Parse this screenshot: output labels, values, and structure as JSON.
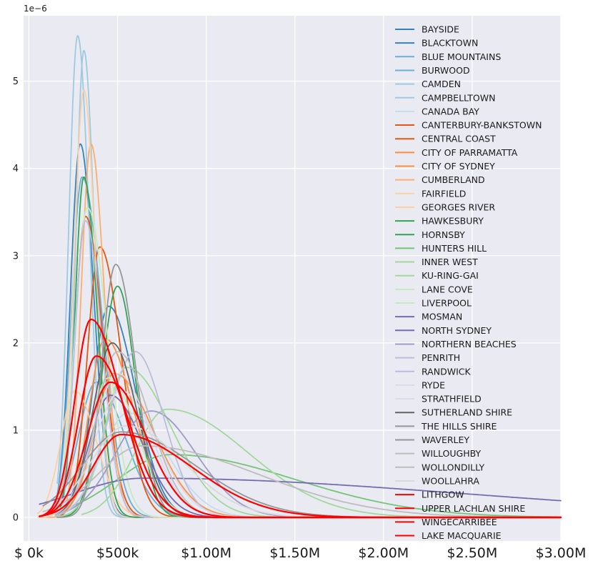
{
  "chart_data": {
    "type": "line",
    "title": "",
    "xlabel": "",
    "ylabel": "",
    "y_multiplier_label": "1e−6",
    "xlim": [
      -30000,
      3000000
    ],
    "ylim": [
      -0.27,
      5.75
    ],
    "x_ticks": [
      {
        "value": 0,
        "label": "$  0k"
      },
      {
        "value": 500000,
        "label": "$500k"
      },
      {
        "value": 1000000,
        "label": "$1.00M"
      },
      {
        "value": 1500000,
        "label": "$1.50M"
      },
      {
        "value": 2000000,
        "label": "$2.00M"
      },
      {
        "value": 2500000,
        "label": "$2.50M"
      },
      {
        "value": 3000000,
        "label": "$3.00M"
      }
    ],
    "y_ticks": [
      {
        "value": 0,
        "label": "0"
      },
      {
        "value": 1,
        "label": "1"
      },
      {
        "value": 2,
        "label": "2"
      },
      {
        "value": 3,
        "label": "3"
      },
      {
        "value": 4,
        "label": "4"
      },
      {
        "value": 5,
        "label": "5"
      }
    ],
    "grid": true,
    "legend_position": "top-right",
    "series": [
      {
        "name": "BAYSIDE",
        "color": "#3182bd",
        "mode": 450000,
        "peak": 2.42,
        "sl": 90000,
        "sr": 150000,
        "xmin": 150000,
        "xmax": 950000
      },
      {
        "name": "BLACKTOWN",
        "color": "#3182bd",
        "mode": 290000,
        "peak": 4.28,
        "sl": 55000,
        "sr": 75000,
        "xmin": 150000,
        "xmax": 620000
      },
      {
        "name": "BLUE MOUNTAINS",
        "color": "#6baed6",
        "mode": 300000,
        "peak": 3.9,
        "sl": 60000,
        "sr": 110000,
        "xmin": 160000,
        "xmax": 800000
      },
      {
        "name": "BURWOOD",
        "color": "#6baed6",
        "mode": 380000,
        "peak": 1.55,
        "sl": 100000,
        "sr": 160000,
        "xmin": 150000,
        "xmax": 1000000
      },
      {
        "name": "CAMDEN",
        "color": "#9ecae1",
        "mode": 275000,
        "peak": 5.52,
        "sl": 50000,
        "sr": 65000,
        "xmin": 160000,
        "xmax": 580000
      },
      {
        "name": "CAMPBELLTOWN",
        "color": "#9ecae1",
        "mode": 310000,
        "peak": 5.35,
        "sl": 45000,
        "sr": 60000,
        "xmin": 180000,
        "xmax": 600000
      },
      {
        "name": "CANADA BAY",
        "color": "#c6dbef",
        "mode": 560000,
        "peak": 1.2,
        "sl": 150000,
        "sr": 220000,
        "xmin": 150000,
        "xmax": 1400000
      },
      {
        "name": "CANTERBURY-BANKSTOWN",
        "color": "#e6550d",
        "mode": 320000,
        "peak": 3.45,
        "sl": 60000,
        "sr": 95000,
        "xmin": 150000,
        "xmax": 800000
      },
      {
        "name": "CENTRAL COAST",
        "color": "#e6550d",
        "mode": 400000,
        "peak": 3.1,
        "sl": 70000,
        "sr": 120000,
        "xmin": 150000,
        "xmax": 1000000
      },
      {
        "name": "CITY OF PARRAMATTA",
        "color": "#fd8d3c",
        "mode": 430000,
        "peak": 2.05,
        "sl": 90000,
        "sr": 160000,
        "xmin": 150000,
        "xmax": 1100000
      },
      {
        "name": "CITY OF SYDNEY",
        "color": "#fd8d3c",
        "mode": 480000,
        "peak": 1.65,
        "sl": 110000,
        "sr": 220000,
        "xmin": 150000,
        "xmax": 1600000
      },
      {
        "name": "CUMBERLAND",
        "color": "#fdae6b",
        "mode": 350000,
        "peak": 4.28,
        "sl": 55000,
        "sr": 75000,
        "xmin": 100000,
        "xmax": 700000
      },
      {
        "name": "FAIRFIELD",
        "color": "#fdd0a2",
        "mode": 310000,
        "peak": 4.9,
        "sl": 55000,
        "sr": 65000,
        "xmin": 50000,
        "xmax": 620000
      },
      {
        "name": "GEORGES RIVER",
        "color": "#fdd0a2",
        "mode": 260000,
        "peak": 1.45,
        "sl": 80000,
        "sr": 120000,
        "xmin": 50000,
        "xmax": 900000
      },
      {
        "name": "HAWKESBURY",
        "color": "#31a354",
        "mode": 310000,
        "peak": 3.9,
        "sl": 50000,
        "sr": 75000,
        "xmin": 160000,
        "xmax": 650000
      },
      {
        "name": "HORNSBY",
        "color": "#31a354",
        "mode": 500000,
        "peak": 2.65,
        "sl": 90000,
        "sr": 100000,
        "xmin": 180000,
        "xmax": 1200000
      },
      {
        "name": "HUNTERS HILL",
        "color": "#74c476",
        "mode": 800000,
        "peak": 0.72,
        "sl": 300000,
        "sr": 700000,
        "xmin": 250000,
        "xmax": 3000000
      },
      {
        "name": "INNER WEST",
        "color": "#a1d99b",
        "mode": 780000,
        "peak": 1.24,
        "sl": 180000,
        "sr": 450000,
        "xmin": 300000,
        "xmax": 3000000
      },
      {
        "name": "KU-RING-GAI",
        "color": "#a1d99b",
        "mode": 550000,
        "peak": 1.72,
        "sl": 120000,
        "sr": 250000,
        "xmin": 150000,
        "xmax": 2000000
      },
      {
        "name": "LANE COVE",
        "color": "#c7e9c0",
        "mode": 330000,
        "peak": 3.55,
        "sl": 70000,
        "sr": 110000,
        "xmin": 130000,
        "xmax": 900000
      },
      {
        "name": "LIVERPOOL",
        "color": "#c7e9c0",
        "mode": 450000,
        "peak": 1.6,
        "sl": 110000,
        "sr": 160000,
        "xmin": 150000,
        "xmax": 1200000
      },
      {
        "name": "MOSMAN",
        "color": "#756bb1",
        "mode": 650000,
        "peak": 0.45,
        "sl": 400000,
        "sr": 1800000,
        "xmin": 60000,
        "xmax": 3000000
      },
      {
        "name": "NORTH SYDNEY",
        "color": "#756bb1",
        "mode": 460000,
        "peak": 1.4,
        "sl": 120000,
        "sr": 180000,
        "xmin": 150000,
        "xmax": 1600000
      },
      {
        "name": "NORTHERN BEACHES",
        "color": "#9e9ac8",
        "mode": 690000,
        "peak": 1.22,
        "sl": 200000,
        "sr": 250000,
        "xmin": 150000,
        "xmax": 2500000
      },
      {
        "name": "PENRITH",
        "color": "#bcbddc",
        "mode": 320000,
        "peak": 3.4,
        "sl": 60000,
        "sr": 90000,
        "xmin": 160000,
        "xmax": 700000
      },
      {
        "name": "RANDWICK",
        "color": "#bcbddc",
        "mode": 600000,
        "peak": 1.9,
        "sl": 150000,
        "sr": 160000,
        "xmin": 150000,
        "xmax": 1600000
      },
      {
        "name": "RYDE",
        "color": "#dadaeb",
        "mode": 500000,
        "peak": 1.65,
        "sl": 130000,
        "sr": 180000,
        "xmin": 150000,
        "xmax": 1500000
      },
      {
        "name": "STRATHFIELD",
        "color": "#dadaeb",
        "mode": 520000,
        "peak": 1.45,
        "sl": 150000,
        "sr": 200000,
        "xmin": 150000,
        "xmax": 1500000
      },
      {
        "name": "SUTHERLAND SHIRE",
        "color": "#636363",
        "mode": 470000,
        "peak": 2.0,
        "sl": 110000,
        "sr": 140000,
        "xmin": 150000,
        "xmax": 1300000
      },
      {
        "name": "THE HILLS SHIRE",
        "color": "#969696",
        "mode": 490000,
        "peak": 2.9,
        "sl": 80000,
        "sr": 110000,
        "xmin": 160000,
        "xmax": 1300000
      },
      {
        "name": "WAVERLEY",
        "color": "#969696",
        "mode": 520000,
        "peak": 0.98,
        "sl": 220000,
        "sr": 420000,
        "xmin": 80000,
        "xmax": 2500000
      },
      {
        "name": "WILLOUGHBY",
        "color": "#bdbdbd",
        "mode": 640000,
        "peak": 0.82,
        "sl": 250000,
        "sr": 650000,
        "xmin": 80000,
        "xmax": 3000000
      },
      {
        "name": "WOLLONDILLY",
        "color": "#bdbdbd",
        "mode": 500000,
        "peak": 1.9,
        "sl": 120000,
        "sr": 180000,
        "xmin": 150000,
        "xmax": 1200000
      },
      {
        "name": "WOOLLAHRA",
        "color": "#d9d9d9",
        "mode": 550000,
        "peak": 1.05,
        "sl": 200000,
        "sr": 320000,
        "xmin": 150000,
        "xmax": 2000000
      },
      {
        "name": "LITHGOW",
        "color": "#ff0000",
        "mode": 350000,
        "peak": 2.27,
        "sl": 90000,
        "sr": 170000,
        "xmin": 60000,
        "xmax": 3000000
      },
      {
        "name": "UPPER LACHLAN SHIRE",
        "color": "#ff0000",
        "mode": 460000,
        "peak": 1.55,
        "sl": 130000,
        "sr": 200000,
        "xmin": 60000,
        "xmax": 3000000
      },
      {
        "name": "WINGECARRIBEE",
        "color": "#ff0000",
        "mode": 520000,
        "peak": 0.95,
        "sl": 160000,
        "sr": 400000,
        "xmin": 60000,
        "xmax": 3000000
      },
      {
        "name": "LAKE MACQUARIE",
        "color": "#ff0000",
        "mode": 380000,
        "peak": 1.85,
        "sl": 100000,
        "sr": 180000,
        "xmin": 60000,
        "xmax": 3000000
      }
    ]
  }
}
